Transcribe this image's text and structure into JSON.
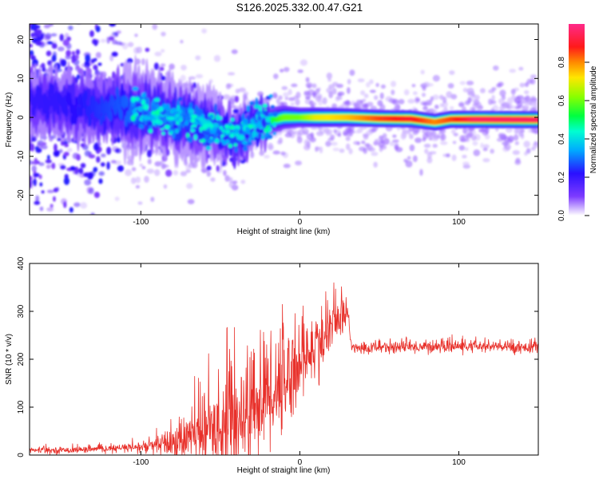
{
  "title": "S126.2025.332.00.47.G21",
  "chart_data": [
    {
      "type": "heatmap",
      "xlabel": "Height of straight line (km)",
      "ylabel": "Frequency (Hz)",
      "xlim": [
        -170,
        150
      ],
      "ylim": [
        -25,
        24
      ],
      "xticks": [
        -100,
        0,
        100
      ],
      "yticks": [
        -20,
        -10,
        0,
        10,
        20
      ],
      "colorbar": {
        "label": "Normalized spectral amplitude",
        "range": [
          0,
          1
        ],
        "ticks": [
          0,
          0.2,
          0.4,
          0.6,
          0.8
        ]
      },
      "ridge": [
        {
          "x": -170,
          "f": 4,
          "spread": 16,
          "amp": 0.2
        },
        {
          "x": -140,
          "f": 3,
          "spread": 13,
          "amp": 0.22
        },
        {
          "x": -110,
          "f": 2,
          "spread": 7,
          "amp": 0.28
        },
        {
          "x": -90,
          "f": 1,
          "spread": 5,
          "amp": 0.32
        },
        {
          "x": -70,
          "f": -1,
          "spread": 5,
          "amp": 0.3
        },
        {
          "x": -50,
          "f": -3,
          "spread": 4.5,
          "amp": 0.28
        },
        {
          "x": -40,
          "f": -5,
          "spread": 4,
          "amp": 0.26
        },
        {
          "x": -30,
          "f": -2,
          "spread": 2.5,
          "amp": 0.35
        },
        {
          "x": -20,
          "f": -1,
          "spread": 1.8,
          "amp": 0.5
        },
        {
          "x": -10,
          "f": 0,
          "spread": 1.5,
          "amp": 0.6
        },
        {
          "x": 0,
          "f": 0,
          "spread": 1.2,
          "amp": 0.6
        },
        {
          "x": 10,
          "f": 0,
          "spread": 1.2,
          "amp": 0.7
        },
        {
          "x": 30,
          "f": 0,
          "spread": 1.1,
          "amp": 0.75
        },
        {
          "x": 50,
          "f": -0.3,
          "spread": 1,
          "amp": 0.85
        },
        {
          "x": 70,
          "f": -0.4,
          "spread": 1,
          "amp": 0.9
        },
        {
          "x": 85,
          "f": -1.2,
          "spread": 1,
          "amp": 0.8
        },
        {
          "x": 95,
          "f": -0.5,
          "spread": 1,
          "amp": 0.85
        },
        {
          "x": 110,
          "f": -0.5,
          "spread": 1,
          "amp": 0.95
        },
        {
          "x": 150,
          "f": -0.6,
          "spread": 1,
          "amp": 0.95
        }
      ]
    },
    {
      "type": "line",
      "xlabel": "Height of straight line (km)",
      "ylabel": "SNR (10 * v/v)",
      "xlim": [
        -170,
        150
      ],
      "ylim": [
        0,
        400
      ],
      "xticks": [
        -100,
        0,
        100
      ],
      "yticks": [
        0,
        100,
        200,
        300,
        400
      ],
      "color": "#e8302a",
      "series": [
        {
          "x": [
            -170,
            -150,
            -130,
            -110,
            -100,
            -90,
            -80,
            -70,
            -60,
            -50,
            -40,
            -30,
            -20,
            -10,
            0,
            5,
            10,
            15,
            20,
            25,
            28,
            30,
            32,
            35,
            50,
            100,
            150
          ],
          "mean": [
            10,
            10,
            12,
            14,
            16,
            20,
            25,
            35,
            50,
            65,
            80,
            100,
            130,
            160,
            190,
            210,
            225,
            240,
            265,
            285,
            300,
            305,
            230,
            222,
            225,
            227,
            225
          ],
          "noise": [
            6,
            6,
            6,
            8,
            12,
            20,
            35,
            55,
            75,
            90,
            105,
            115,
            120,
            110,
            80,
            70,
            70,
            60,
            45,
            35,
            30,
            25,
            15,
            12,
            12,
            12,
            12
          ]
        }
      ]
    }
  ]
}
